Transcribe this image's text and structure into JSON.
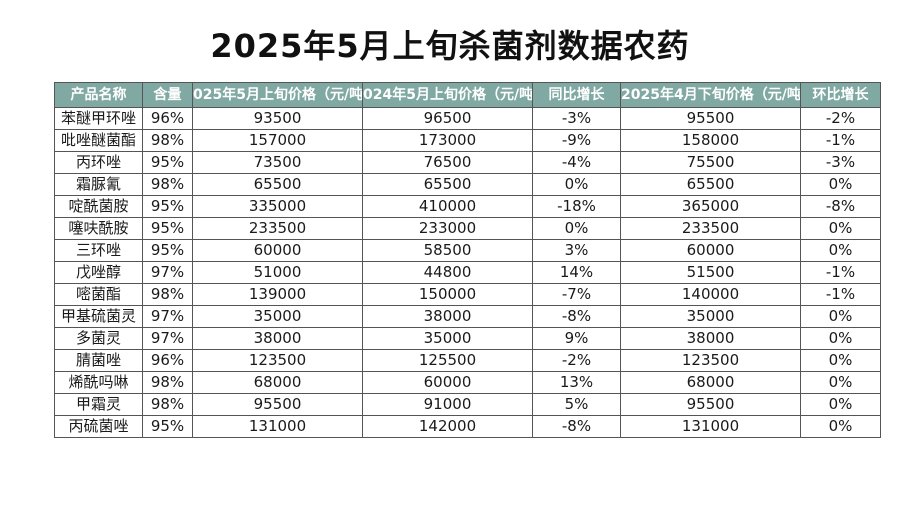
{
  "title": "2025年5月上旬杀菌剂数据农药",
  "colors": {
    "header_bg": "#7fa9a2",
    "header_text": "#ffffff",
    "grid": "#555555"
  },
  "table": {
    "headers": [
      "产品名称",
      "含量",
      "025年5月上旬价格（元/吨",
      "024年5月上旬价格（元/吨",
      "同比增长",
      "2025年4月下旬价格（元/吨）",
      "环比增长"
    ],
    "rows": [
      [
        "苯醚甲环唑",
        "96%",
        "93500",
        "96500",
        "-3%",
        "95500",
        "-2%"
      ],
      [
        "吡唑醚菌酯",
        "98%",
        "157000",
        "173000",
        "-9%",
        "158000",
        "-1%"
      ],
      [
        "丙环唑",
        "95%",
        "73500",
        "76500",
        "-4%",
        "75500",
        "-3%"
      ],
      [
        "霜脲氰",
        "98%",
        "65500",
        "65500",
        "0%",
        "65500",
        "0%"
      ],
      [
        "啶酰菌胺",
        "95%",
        "335000",
        "410000",
        "-18%",
        "365000",
        "-8%"
      ],
      [
        "噻呋酰胺",
        "95%",
        "233500",
        "233000",
        "0%",
        "233500",
        "0%"
      ],
      [
        "三环唑",
        "95%",
        "60000",
        "58500",
        "3%",
        "60000",
        "0%"
      ],
      [
        "戊唑醇",
        "97%",
        "51000",
        "44800",
        "14%",
        "51500",
        "-1%"
      ],
      [
        "嘧菌酯",
        "98%",
        "139000",
        "150000",
        "-7%",
        "140000",
        "-1%"
      ],
      [
        "甲基硫菌灵",
        "97%",
        "35000",
        "38000",
        "-8%",
        "35000",
        "0%"
      ],
      [
        "多菌灵",
        "97%",
        "38000",
        "35000",
        "9%",
        "38000",
        "0%"
      ],
      [
        "腈菌唑",
        "96%",
        "123500",
        "125500",
        "-2%",
        "123500",
        "0%"
      ],
      [
        "烯酰吗啉",
        "98%",
        "68000",
        "60000",
        "13%",
        "68000",
        "0%"
      ],
      [
        "甲霜灵",
        "98%",
        "95500",
        "91000",
        "5%",
        "95500",
        "0%"
      ],
      [
        "丙硫菌唑",
        "95%",
        "131000",
        "142000",
        "-8%",
        "131000",
        "0%"
      ]
    ]
  }
}
